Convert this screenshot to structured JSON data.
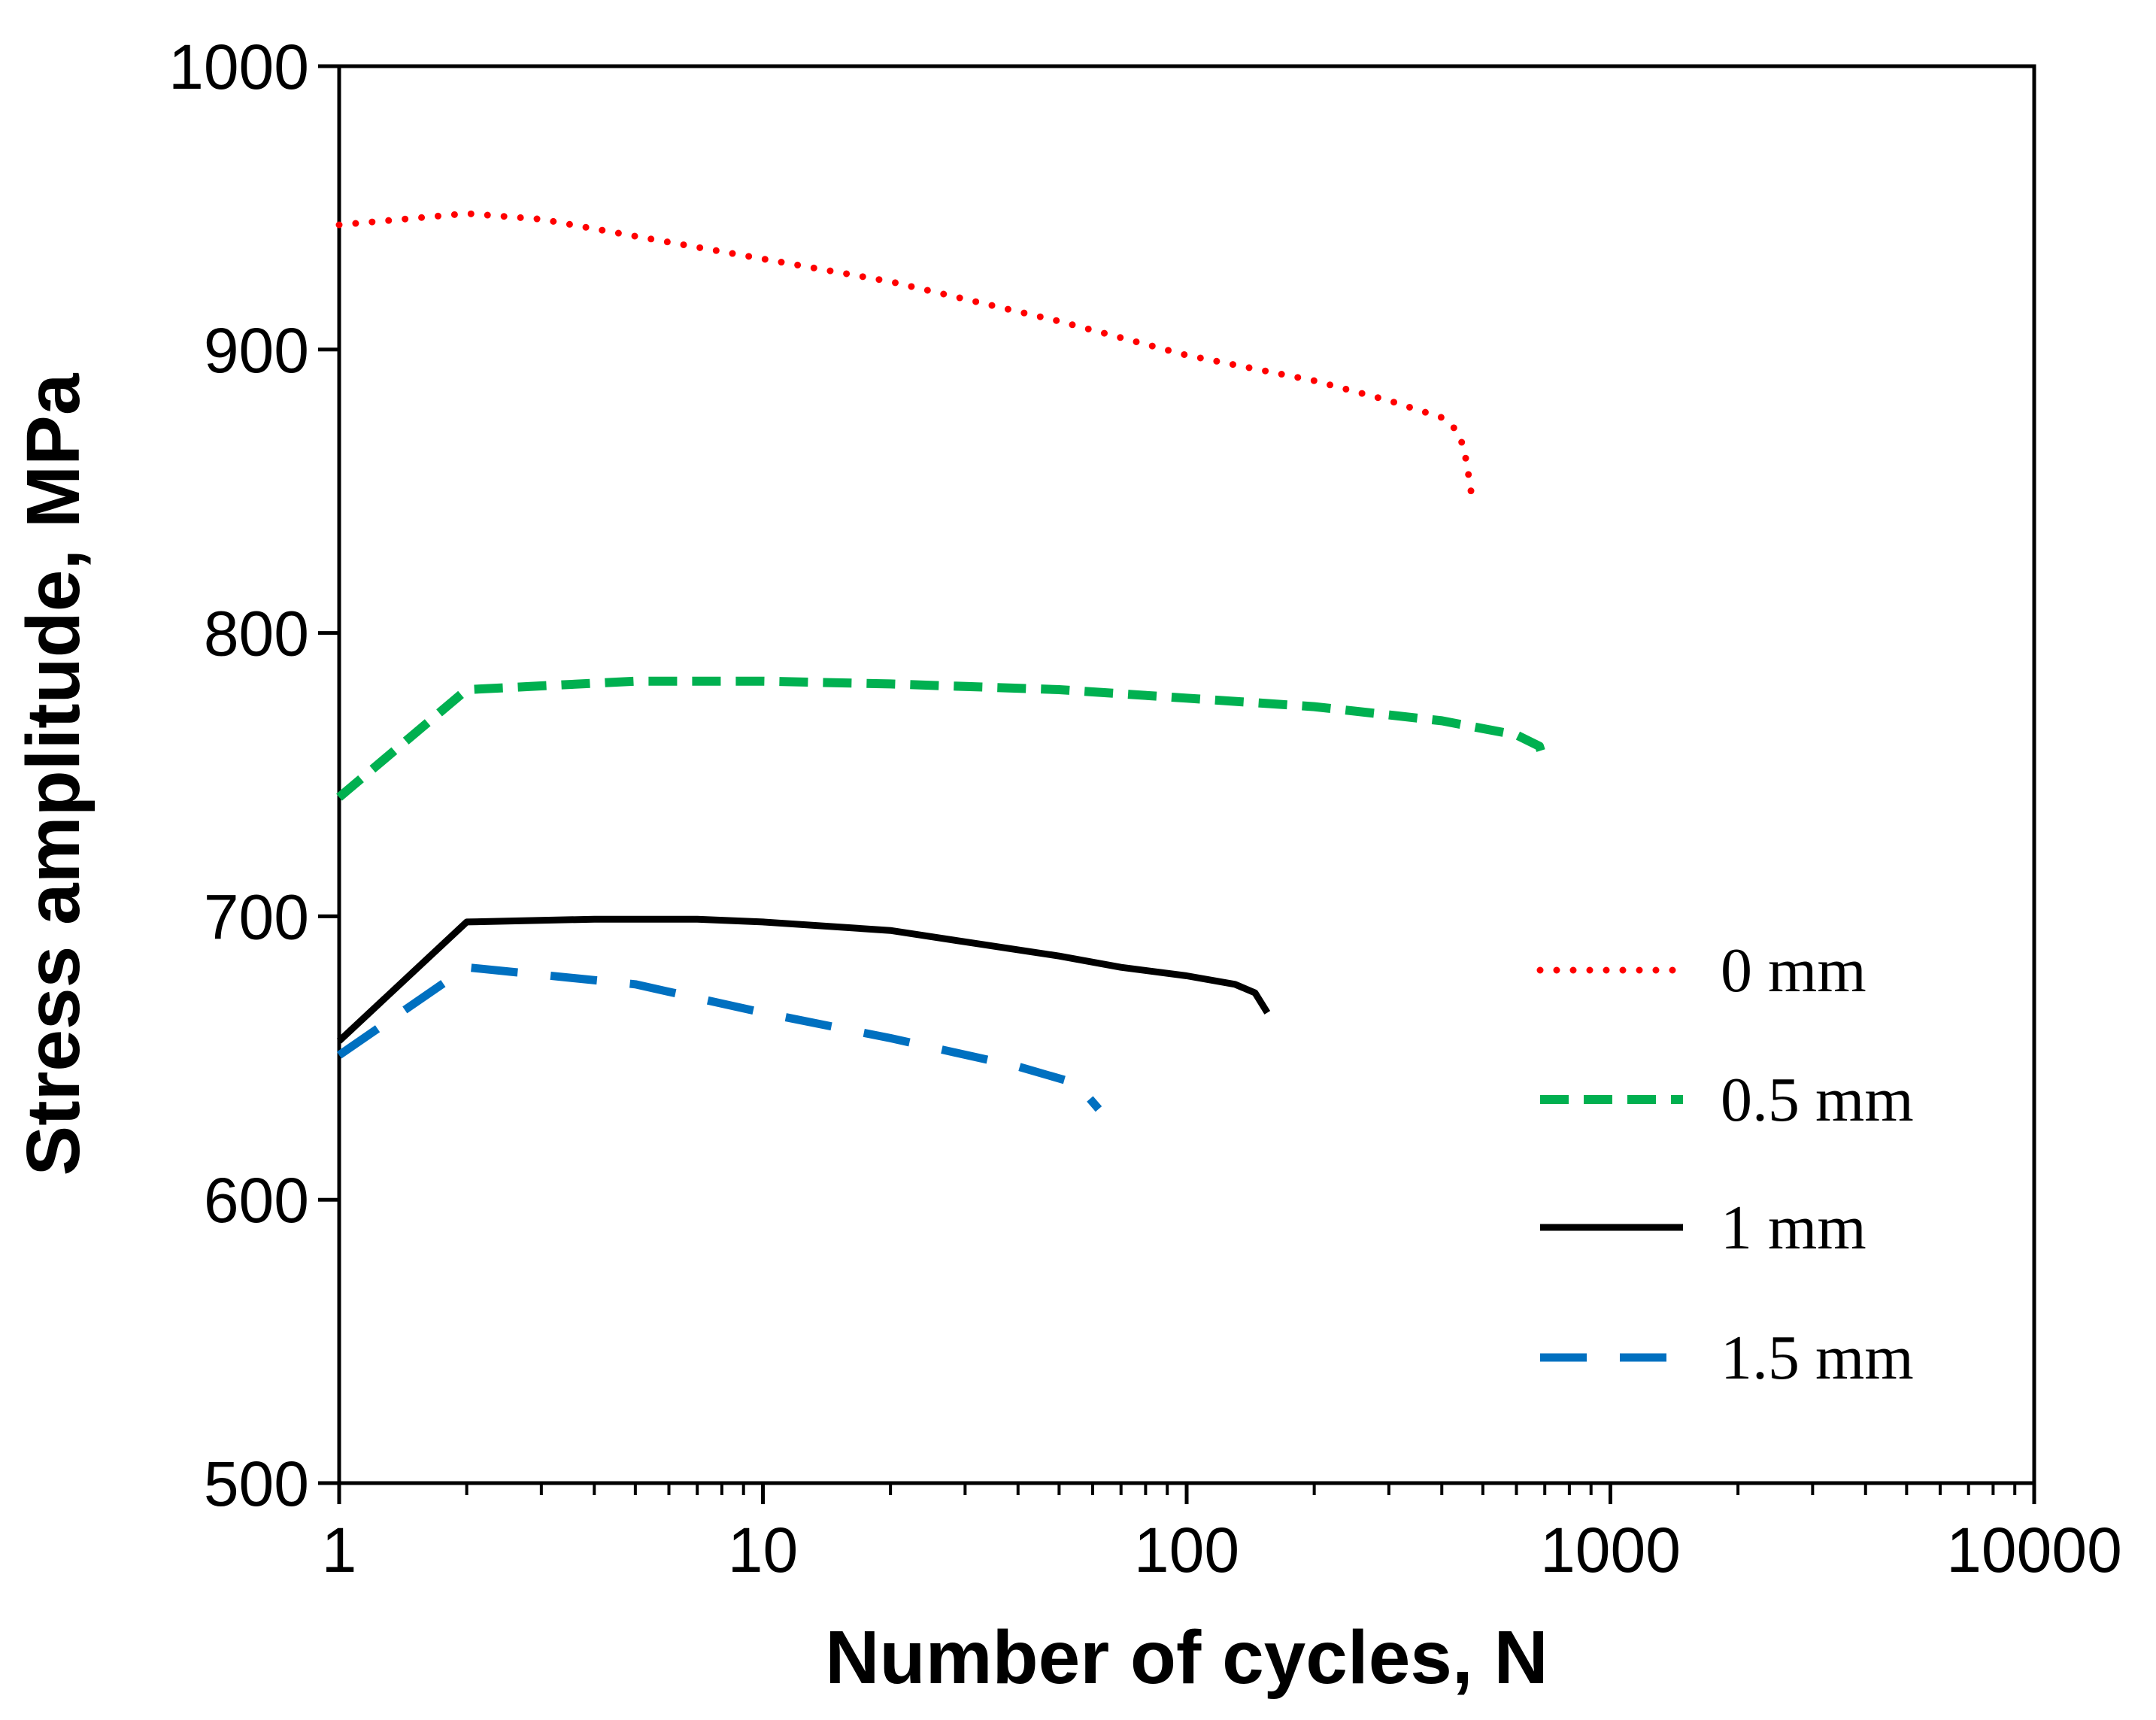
{
  "chart_data": {
    "type": "line",
    "title": "",
    "xlabel": "Number of cycles, N",
    "ylabel": "Stress amplitude, MPa",
    "xscale": "log",
    "xlim": [
      1,
      10000
    ],
    "ylim": [
      500,
      1000
    ],
    "x_ticks": [
      1,
      10,
      100,
      1000,
      10000
    ],
    "x_tick_labels": [
      "1",
      "10",
      "100",
      "1000",
      "10000"
    ],
    "y_ticks": [
      500,
      600,
      700,
      800,
      900,
      1000
    ],
    "y_tick_labels": [
      "500",
      "600",
      "700",
      "800",
      "900",
      "1000"
    ],
    "grid": false,
    "legend_position": "right",
    "series": [
      {
        "name": "0 mm",
        "color": "#ff0000",
        "style": "dotted",
        "points": [
          [
            1,
            944
          ],
          [
            2,
            948
          ],
          [
            3,
            946
          ],
          [
            5,
            940
          ],
          [
            10,
            932
          ],
          [
            20,
            924
          ],
          [
            50,
            910
          ],
          [
            100,
            898
          ],
          [
            200,
            889
          ],
          [
            300,
            882
          ],
          [
            400,
            876
          ],
          [
            430,
            872
          ],
          [
            450,
            866
          ],
          [
            460,
            858
          ],
          [
            470,
            849
          ]
        ]
      },
      {
        "name": "0.5 mm",
        "color": "#00b050",
        "style": "dashed",
        "points": [
          [
            1,
            742
          ],
          [
            2,
            780
          ],
          [
            5,
            783
          ],
          [
            10,
            783
          ],
          [
            20,
            782
          ],
          [
            50,
            780
          ],
          [
            100,
            777
          ],
          [
            200,
            774
          ],
          [
            400,
            769
          ],
          [
            600,
            764
          ],
          [
            680,
            760
          ],
          [
            700,
            754
          ]
        ]
      },
      {
        "name": "1 mm",
        "color": "#000000",
        "style": "solid",
        "points": [
          [
            1,
            656
          ],
          [
            2,
            698
          ],
          [
            4,
            699
          ],
          [
            7,
            699
          ],
          [
            10,
            698
          ],
          [
            20,
            695
          ],
          [
            30,
            691
          ],
          [
            50,
            686
          ],
          [
            70,
            682
          ],
          [
            100,
            679
          ],
          [
            130,
            676
          ],
          [
            145,
            673
          ],
          [
            155,
            666
          ]
        ]
      },
      {
        "name": "1.5 mm",
        "color": "#0070c0",
        "style": "longdash",
        "points": [
          [
            1,
            651
          ],
          [
            2,
            682
          ],
          [
            5,
            676
          ],
          [
            10,
            666
          ],
          [
            20,
            657
          ],
          [
            40,
            647
          ],
          [
            55,
            641
          ],
          [
            62,
            632
          ]
        ]
      }
    ]
  }
}
